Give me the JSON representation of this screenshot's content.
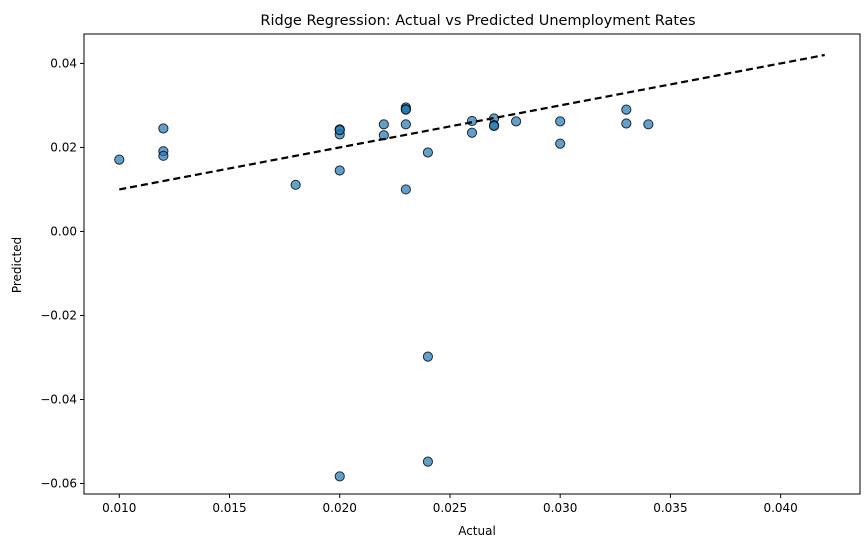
{
  "chart_data": {
    "type": "scatter",
    "title": "Ridge Regression: Actual vs Predicted Unemployment Rates",
    "xlabel": "Actual",
    "ylabel": "Predicted",
    "xlim": [
      0.0084,
      0.0436
    ],
    "ylim": [
      -0.0625,
      0.047
    ],
    "xticks": [
      0.01,
      0.015,
      0.02,
      0.025,
      0.03,
      0.035,
      0.04
    ],
    "xtick_labels": [
      "0.010",
      "0.015",
      "0.020",
      "0.025",
      "0.030",
      "0.035",
      "0.040"
    ],
    "yticks": [
      -0.06,
      -0.04,
      -0.02,
      0.0,
      0.02,
      0.04
    ],
    "ytick_labels": [
      "−0.06",
      "−0.04",
      "−0.02",
      "0.00",
      "0.02",
      "0.04"
    ],
    "grid": false,
    "points": {
      "color": "#1f77b4",
      "edge_color": "#000000",
      "alpha": 0.7,
      "x": [
        0.01,
        0.012,
        0.012,
        0.012,
        0.018,
        0.02,
        0.02,
        0.02,
        0.02,
        0.022,
        0.022,
        0.023,
        0.023,
        0.023,
        0.023,
        0.023,
        0.024,
        0.024,
        0.024,
        0.026,
        0.026,
        0.027,
        0.027,
        0.027,
        0.028,
        0.03,
        0.03,
        0.033,
        0.033,
        0.034,
        0.02
      ],
      "y": [
        0.0171,
        0.0245,
        0.0191,
        0.018,
        0.0111,
        0.0243,
        0.0231,
        0.0145,
        -0.0583,
        0.0255,
        0.0229,
        0.0295,
        0.0291,
        0.0255,
        0.01,
        0.029,
        0.0188,
        -0.0298,
        -0.0548,
        0.0263,
        0.0235,
        0.0269,
        0.0253,
        0.0251,
        0.0262,
        0.0262,
        0.0209,
        0.029,
        0.0257,
        0.0255,
        0.0241
      ]
    },
    "reference_line": {
      "style": "dashed",
      "color": "#000000",
      "x": [
        0.01,
        0.042
      ],
      "y": [
        0.01,
        0.042
      ]
    }
  }
}
